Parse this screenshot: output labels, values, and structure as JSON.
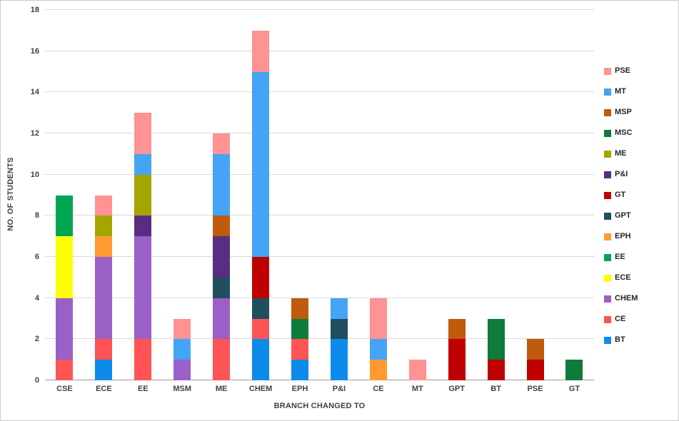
{
  "chart_data": {
    "type": "bar",
    "stacked": true,
    "title": "",
    "xlabel": "BRANCH CHANGED TO",
    "ylabel": "NO. OF STUDENTS",
    "ylim": [
      0,
      18
    ],
    "ytick_step": 2,
    "grid": true,
    "legend_position": "right",
    "categories": [
      "CSE",
      "ECE",
      "EE",
      "MSM",
      "ME",
      "CHEM",
      "EPH",
      "P&I",
      "CE",
      "MT",
      "GPT",
      "BT",
      "PSE",
      "GT"
    ],
    "series": [
      {
        "name": "BT",
        "color": "#0d8beb",
        "values": [
          0,
          1,
          0,
          0,
          0,
          2,
          1,
          2,
          0,
          0,
          0,
          0,
          0,
          0
        ]
      },
      {
        "name": "CE",
        "color": "#ff5455",
        "values": [
          1,
          1,
          2,
          0,
          2,
          1,
          1,
          0,
          0,
          0,
          0,
          0,
          0,
          0
        ]
      },
      {
        "name": "CHEM",
        "color": "#9a60c8",
        "values": [
          3,
          4,
          5,
          1,
          2,
          0,
          0,
          0,
          0,
          0,
          0,
          0,
          0,
          0
        ]
      },
      {
        "name": "ECE",
        "color": "#ffff00",
        "values": [
          3,
          0,
          0,
          0,
          0,
          0,
          0,
          0,
          0,
          0,
          0,
          0,
          0,
          0
        ]
      },
      {
        "name": "EE",
        "color": "#00a551",
        "values": [
          2,
          0,
          0,
          0,
          0,
          0,
          0,
          0,
          0,
          0,
          0,
          0,
          0,
          0
        ]
      },
      {
        "name": "EPH",
        "color": "#ff9933",
        "values": [
          0,
          1,
          0,
          0,
          0,
          0,
          0,
          0,
          1,
          0,
          0,
          0,
          0,
          0
        ]
      },
      {
        "name": "GPT",
        "color": "#1f4e5f",
        "values": [
          0,
          0,
          0,
          0,
          1,
          1,
          0,
          1,
          0,
          0,
          0,
          0,
          0,
          0
        ]
      },
      {
        "name": "GT",
        "color": "#c00000",
        "values": [
          0,
          0,
          0,
          0,
          0,
          2,
          0,
          0,
          0,
          0,
          2,
          1,
          1,
          0
        ]
      },
      {
        "name": "P&I",
        "color": "#5a2d82",
        "values": [
          0,
          0,
          1,
          0,
          2,
          0,
          0,
          0,
          0,
          0,
          0,
          0,
          0,
          0
        ]
      },
      {
        "name": "ME",
        "color": "#a5a500",
        "values": [
          0,
          1,
          2,
          0,
          0,
          0,
          0,
          0,
          0,
          0,
          0,
          0,
          0,
          0
        ]
      },
      {
        "name": "MSC",
        "color": "#0e7a3c",
        "values": [
          0,
          0,
          0,
          0,
          0,
          0,
          1,
          0,
          0,
          0,
          0,
          2,
          0,
          1
        ]
      },
      {
        "name": "MSP",
        "color": "#c05a0d",
        "values": [
          0,
          0,
          0,
          0,
          1,
          0,
          1,
          0,
          0,
          0,
          1,
          0,
          1,
          0
        ]
      },
      {
        "name": "MT",
        "color": "#44a4f5",
        "values": [
          0,
          0,
          1,
          1,
          3,
          9,
          0,
          1,
          1,
          0,
          0,
          0,
          0,
          0
        ]
      },
      {
        "name": "PSE",
        "color": "#ff9292",
        "values": [
          0,
          1,
          2,
          1,
          1,
          2,
          0,
          0,
          2,
          1,
          0,
          0,
          0,
          0
        ]
      }
    ],
    "legend_order_top_to_bottom": [
      "PSE",
      "MT",
      "MSP",
      "MSC",
      "ME",
      "P&I",
      "GT",
      "GPT",
      "EPH",
      "EE",
      "ECE",
      "CHEM",
      "CE",
      "BT"
    ]
  }
}
